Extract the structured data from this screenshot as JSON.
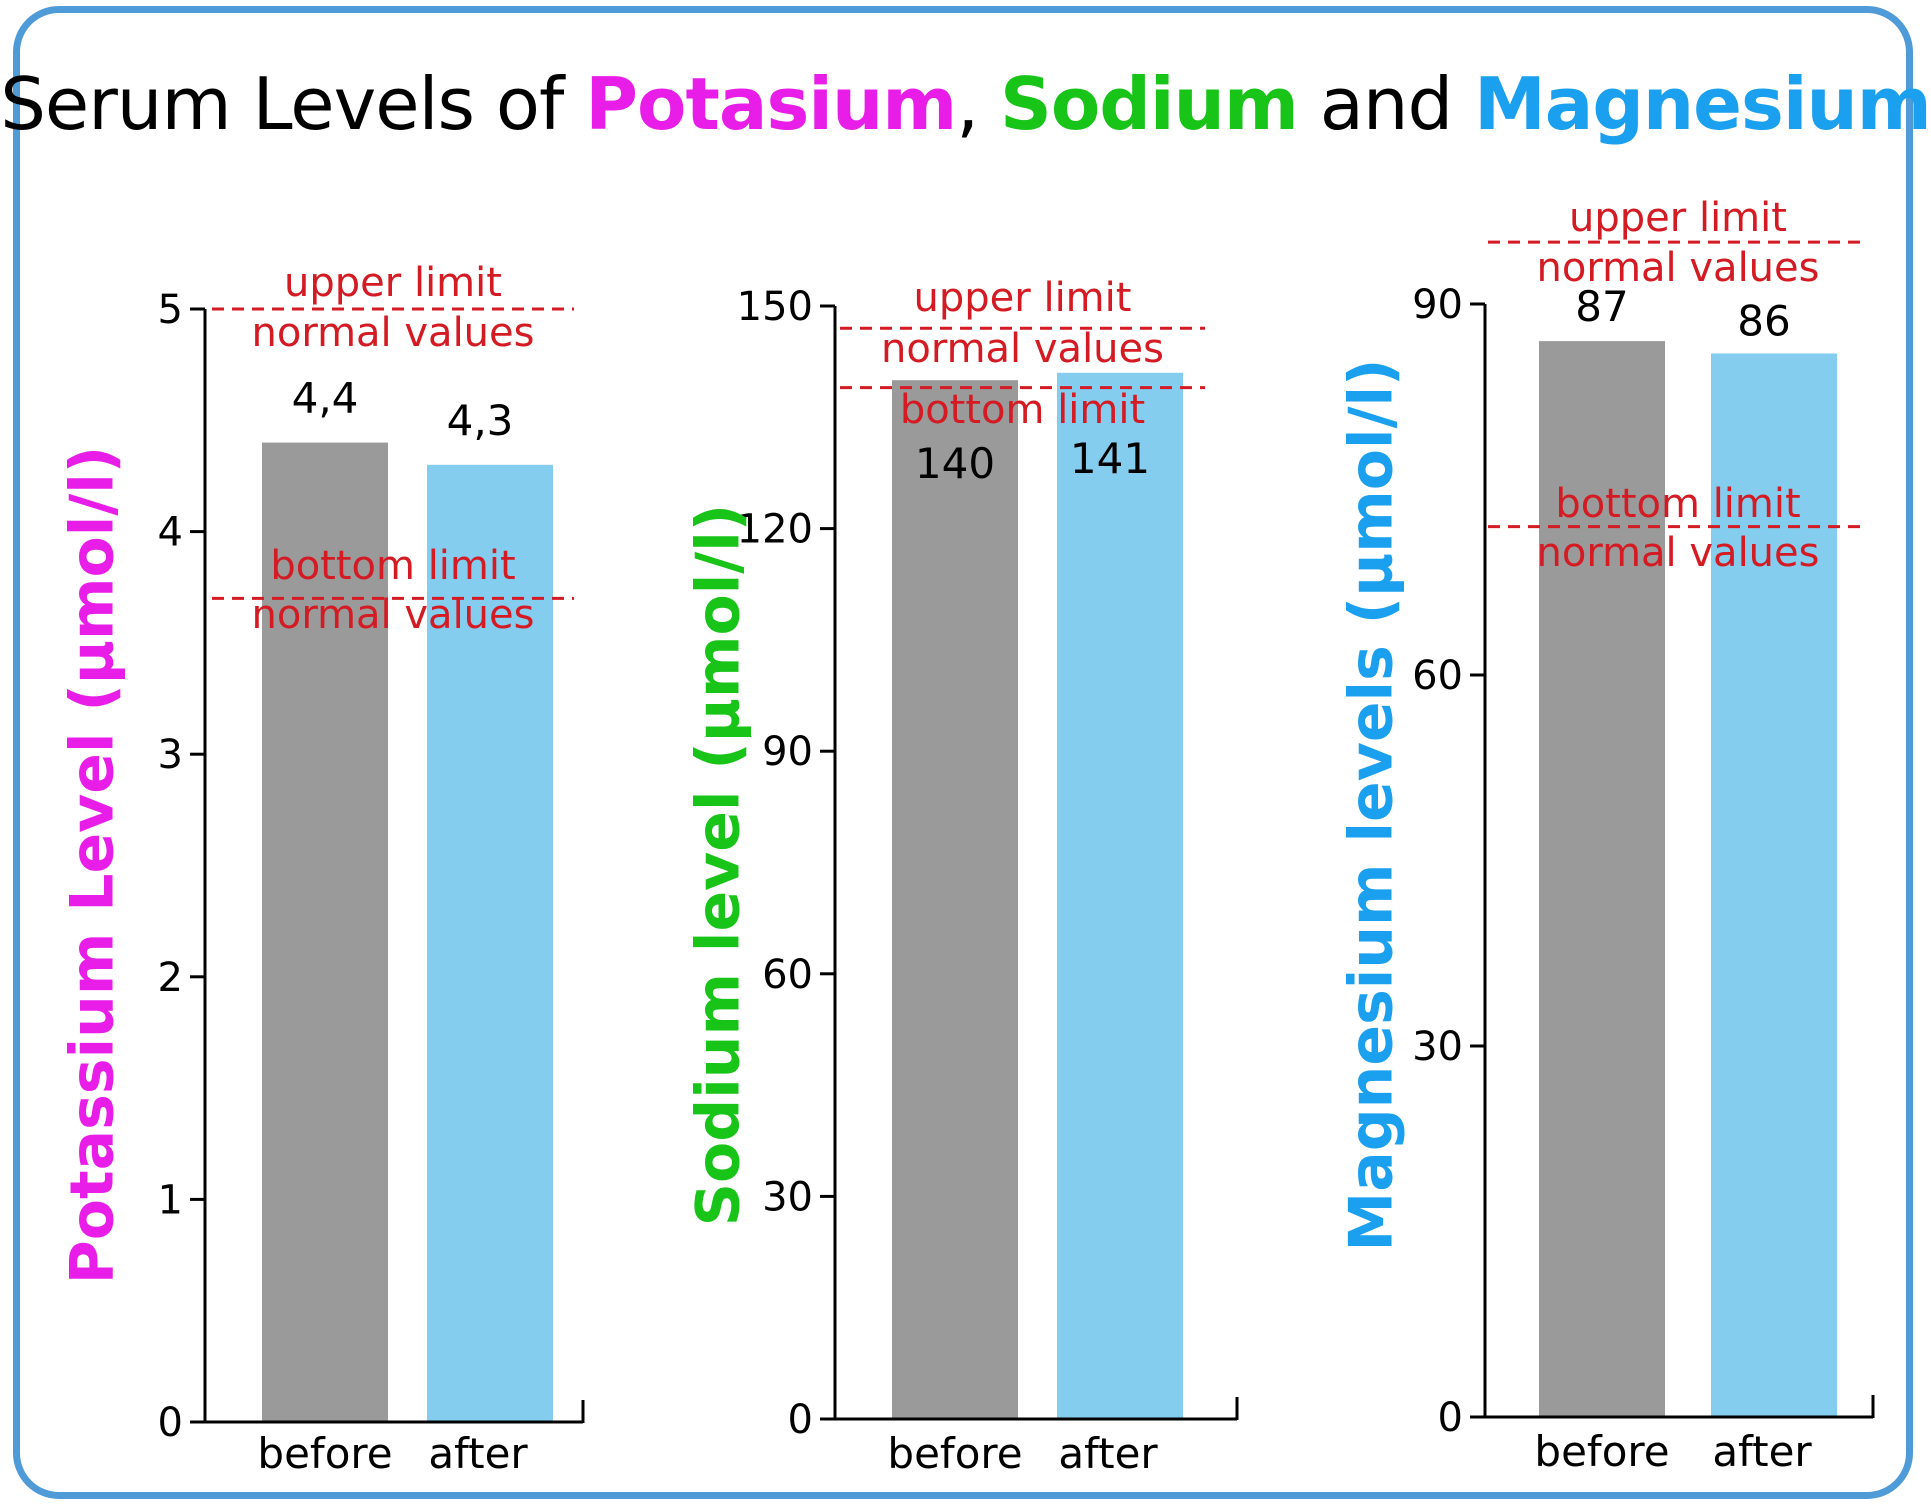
{
  "title": {
    "prefix": "Serum Levels of ",
    "k": "Potasium",
    "sep1": ", ",
    "na": "Sodium",
    "sep2": " and ",
    "mg": "Magnesium"
  },
  "colors": {
    "before_bar": "#9a9a9a",
    "after_bar": "#84cdee",
    "limit_line": "#d41a22",
    "potassium": "#e81ee8",
    "sodium": "#19c419",
    "magnesium": "#1aa0ee",
    "frame": "#4f9bd8"
  },
  "chart_data": [
    {
      "type": "bar",
      "categories": [
        "before",
        "after"
      ],
      "values": [
        4.4,
        4.3
      ],
      "value_labels": [
        "4,4",
        "4,3"
      ],
      "ylabel": "Potassium Level (µmol/l)",
      "ylim": [
        0,
        5
      ],
      "yticks": [
        0,
        1,
        2,
        3,
        4,
        5
      ],
      "limits": [
        {
          "name": "upper",
          "value": 5.0,
          "label_line1": "upper limit",
          "label_line2": "normal values"
        },
        {
          "name": "bottom",
          "value": 3.7,
          "label_line1": "bottom limit",
          "label_line2": "normal values"
        }
      ]
    },
    {
      "type": "bar",
      "categories": [
        "before",
        "after"
      ],
      "values": [
        140,
        141
      ],
      "value_labels": [
        "140",
        "141"
      ],
      "ylabel": "Sodium level (µmol/l)",
      "ylim": [
        0,
        150
      ],
      "yticks": [
        0,
        30,
        60,
        90,
        120,
        150
      ],
      "limits": [
        {
          "name": "upper",
          "value": 147,
          "label_line1": "upper limit",
          "label_line2": "normal values"
        },
        {
          "name": "bottom",
          "value": 139,
          "label_line1": "bottom limit",
          "label_line2": ""
        }
      ]
    },
    {
      "type": "bar",
      "categories": [
        "before",
        "after"
      ],
      "values": [
        87,
        86
      ],
      "value_labels": [
        "87",
        "86"
      ],
      "ylabel": "Magnesium levels (µmol/l)",
      "ylim": [
        0,
        90
      ],
      "yticks": [
        0,
        30,
        60,
        90
      ],
      "limits": [
        {
          "name": "upper",
          "value": 95,
          "label_line1": "upper limit",
          "label_line2": "normal values"
        },
        {
          "name": "bottom",
          "value": 72,
          "label_line1": "bottom limit",
          "label_line2": "normal values"
        }
      ]
    }
  ]
}
